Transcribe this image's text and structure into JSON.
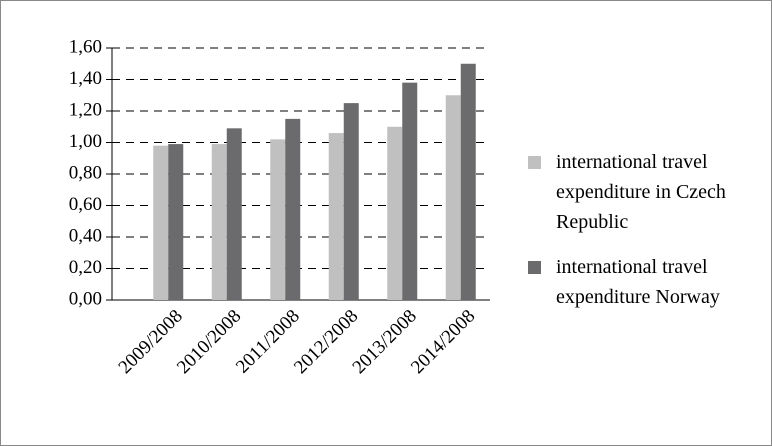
{
  "chart_data": {
    "type": "bar",
    "categories": [
      "2009/2008",
      "2010/2008",
      "2011/2008",
      "2012/2008",
      "2013/2008",
      "2014/2008"
    ],
    "series": [
      {
        "name": "international travel expenditure in Czech Republic",
        "color": "#c0c0c0",
        "values": [
          0.98,
          0.99,
          1.02,
          1.06,
          1.1,
          1.3
        ]
      },
      {
        "name": "international travel expenditure Norway",
        "color": "#6b6b6d",
        "values": [
          0.99,
          1.09,
          1.15,
          1.25,
          1.38,
          1.5
        ]
      }
    ],
    "ylim": [
      0,
      1.6
    ],
    "yticks": [
      {
        "value": 0,
        "label": "0,00"
      },
      {
        "value": 0.2,
        "label": "0,20"
      },
      {
        "value": 0.4,
        "label": "0,40"
      },
      {
        "value": 0.6,
        "label": "0,60"
      },
      {
        "value": 0.8,
        "label": "0,80"
      },
      {
        "value": 1.0,
        "label": "1,00"
      },
      {
        "value": 1.2,
        "label": "1,20"
      },
      {
        "value": 1.4,
        "label": "1,40"
      },
      {
        "value": 1.6,
        "label": "1,60"
      }
    ],
    "grid": true,
    "legend": "right"
  }
}
